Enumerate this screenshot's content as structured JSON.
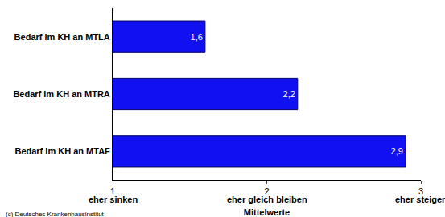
{
  "chart_data": {
    "type": "bar",
    "orientation": "horizontal",
    "categories": [
      "Bedarf im KH an MTLA",
      "Bedarf im KH an MTRA",
      "Bedarf im KH an MTAF"
    ],
    "values": [
      1.6,
      2.2,
      2.9
    ],
    "value_labels": [
      "1,6",
      "2,2",
      "2,9"
    ],
    "data_labels": true,
    "color": "#1010f0",
    "xlim": [
      1,
      3
    ],
    "xticks": [
      1,
      2,
      3
    ],
    "x_label": "Mittelwerte",
    "annotations": [
      {
        "text": "eher sinken",
        "x": 1
      },
      {
        "text": "eher gleich bleiben",
        "x": 2
      },
      {
        "text": "eher steigen",
        "x": 3
      }
    ],
    "source": "(c) Deutsches Krankenhausinstitut",
    "grid": false
  }
}
